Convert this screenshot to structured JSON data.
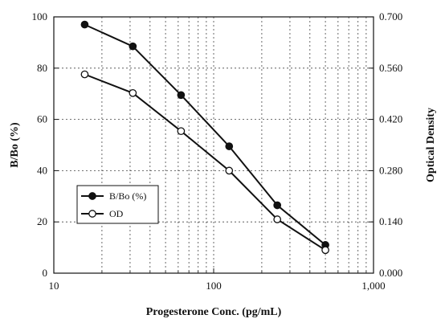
{
  "chart_data": {
    "type": "line",
    "xscale": "log",
    "xlim": [
      10,
      1000
    ],
    "x_ticks": [
      10,
      100,
      1000
    ],
    "x_tick_labels": [
      "10",
      "100",
      "1,000"
    ],
    "xlabel": "Progesterone Conc. (pg/mL)",
    "ylabel": "B/Bo (%)",
    "ylim": [
      0,
      100
    ],
    "y_ticks": [
      0,
      20,
      40,
      60,
      80,
      100
    ],
    "y_tick_labels": [
      "0",
      "20",
      "40",
      "60",
      "80",
      "100"
    ],
    "y2label": "Optical Density",
    "y2lim": [
      0,
      0.7
    ],
    "y2_ticks": [
      0,
      0.14,
      0.28,
      0.42,
      0.56,
      0.7
    ],
    "y2_tick_labels": [
      "0.000",
      "0.140",
      "0.280",
      "0.420",
      "0.560",
      "0.700"
    ],
    "grid": true,
    "legend_position": "lower-left",
    "series": [
      {
        "name": "B/Bo (%)",
        "axis": "left",
        "marker": "filled-circle",
        "color": "#111111",
        "x": [
          15.6,
          31.2,
          62.5,
          125,
          250,
          500
        ],
        "y": [
          97,
          88.5,
          69.5,
          49.5,
          26.5,
          11
        ]
      },
      {
        "name": "OD",
        "axis": "right",
        "marker": "open-circle",
        "color": "#111111",
        "x": [
          15.6,
          31.2,
          62.5,
          125,
          250,
          500
        ],
        "y": [
          0.543,
          0.492,
          0.388,
          0.28,
          0.147,
          0.063
        ]
      }
    ]
  }
}
